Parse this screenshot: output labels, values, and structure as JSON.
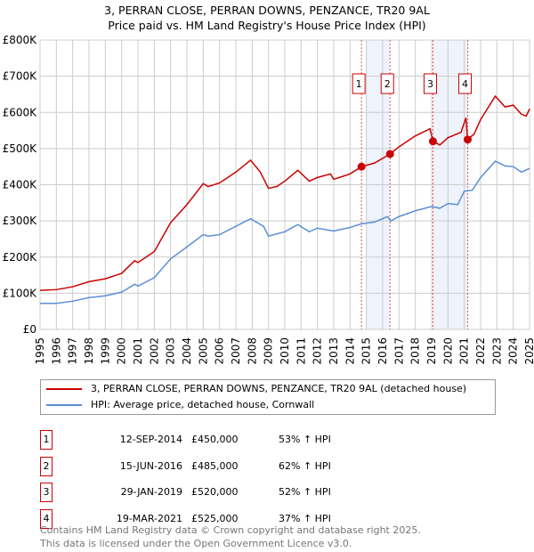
{
  "chart_data": {
    "type": "line",
    "title": "3, PERRAN CLOSE, PERRAN DOWNS, PENZANCE, TR20 9AL",
    "subtitle": "Price paid vs. HM Land Registry's House Price Index (HPI)",
    "xlim": [
      1995,
      2025
    ],
    "ylim": [
      0,
      800000
    ],
    "y_ticks": [
      {
        "v": 0,
        "label": "£0"
      },
      {
        "v": 100000,
        "label": "£100K"
      },
      {
        "v": 200000,
        "label": "£200K"
      },
      {
        "v": 300000,
        "label": "£300K"
      },
      {
        "v": 400000,
        "label": "£400K"
      },
      {
        "v": 500000,
        "label": "£500K"
      },
      {
        "v": 600000,
        "label": "£600K"
      },
      {
        "v": 700000,
        "label": "£700K"
      },
      {
        "v": 800000,
        "label": "£800K"
      }
    ],
    "x_ticks": [
      "1995",
      "1996",
      "1997",
      "1998",
      "1999",
      "2000",
      "2001",
      "2002",
      "2003",
      "2004",
      "2005",
      "2006",
      "2007",
      "2008",
      "2009",
      "2010",
      "2011",
      "2012",
      "2013",
      "2014",
      "2015",
      "2016",
      "2017",
      "2018",
      "2019",
      "2020",
      "2021",
      "2022",
      "2023",
      "2024",
      "2025"
    ],
    "grid": true,
    "series": [
      {
        "name": "3, PERRAN CLOSE, PERRAN DOWNS, PENZANCE, TR20 9AL (detached house)",
        "color": "#cc0000",
        "x": [
          1995,
          1996,
          1997,
          1998,
          1999,
          2000,
          2000.8,
          2001,
          2002,
          2003,
          2004,
          2005,
          2005.3,
          2006,
          2007,
          2007.9,
          2008.5,
          2009,
          2009.5,
          2010,
          2010.8,
          2011.5,
          2012,
          2012.8,
          2013,
          2014,
          2014.7,
          2015.5,
          2016.45,
          2017,
          2018,
          2018.9,
          2019.08,
          2019.5,
          2020,
          2020.8,
          2021.1,
          2021.2,
          2021.6,
          2022,
          2022.9,
          2023.5,
          2024,
          2024.5,
          2024.8,
          2025
        ],
        "y": [
          108000,
          110000,
          118000,
          132000,
          140000,
          155000,
          190000,
          185000,
          215000,
          295000,
          345000,
          403000,
          395000,
          405000,
          435000,
          468000,
          435000,
          390000,
          395000,
          410000,
          440000,
          410000,
          420000,
          430000,
          415000,
          430000,
          450000,
          460000,
          485000,
          505000,
          535000,
          555000,
          520000,
          510000,
          530000,
          545000,
          585000,
          525000,
          540000,
          580000,
          645000,
          615000,
          620000,
          595000,
          590000,
          610000
        ]
      },
      {
        "name": "HPI: Average price, detached house, Cornwall",
        "color": "#5b8fd4",
        "x": [
          1995,
          1996,
          1997,
          1998,
          1999,
          2000,
          2000.8,
          2001,
          2002,
          2003,
          2004,
          2005,
          2005.3,
          2006,
          2007,
          2007.9,
          2008.7,
          2009,
          2010,
          2010.8,
          2011.5,
          2012,
          2013,
          2014,
          2014.7,
          2015.5,
          2016.3,
          2016.5,
          2017,
          2018,
          2019,
          2019.5,
          2020,
          2020.6,
          2021,
          2021.5,
          2022,
          2022.9,
          2023.5,
          2024,
          2024.5,
          2025
        ],
        "y": [
          72000,
          72000,
          78000,
          88000,
          93000,
          103000,
          125000,
          120000,
          143000,
          195000,
          228000,
          262000,
          258000,
          262000,
          285000,
          306000,
          285000,
          258000,
          270000,
          290000,
          270000,
          280000,
          272000,
          282000,
          292000,
          297000,
          312000,
          300000,
          312000,
          328000,
          340000,
          335000,
          348000,
          345000,
          382000,
          385000,
          420000,
          465000,
          452000,
          450000,
          435000,
          445000
        ]
      }
    ],
    "sales": [
      {
        "n": "1",
        "x": 2014.7,
        "y": 450000,
        "date": "12-SEP-2014",
        "price": "£450,000",
        "hpi": "53% ↑ HPI"
      },
      {
        "n": "2",
        "x": 2016.45,
        "y": 485000,
        "date": "15-JUN-2016",
        "price": "£485,000",
        "hpi": "62% ↑ HPI"
      },
      {
        "n": "3",
        "x": 2019.08,
        "y": 520000,
        "date": "29-JAN-2019",
        "price": "£520,000",
        "hpi": "52% ↑ HPI"
      },
      {
        "n": "4",
        "x": 2021.21,
        "y": 525000,
        "date": "19-MAR-2021",
        "price": "£525,000",
        "hpi": "37% ↑ HPI"
      }
    ],
    "shaded": [
      [
        2015,
        2016.45
      ],
      [
        2019.08,
        2021.21
      ]
    ]
  },
  "footer": [
    "Contains HM Land Registry data © Crown copyright and database right 2025.",
    "This data is licensed under the Open Government Licence v3.0."
  ]
}
